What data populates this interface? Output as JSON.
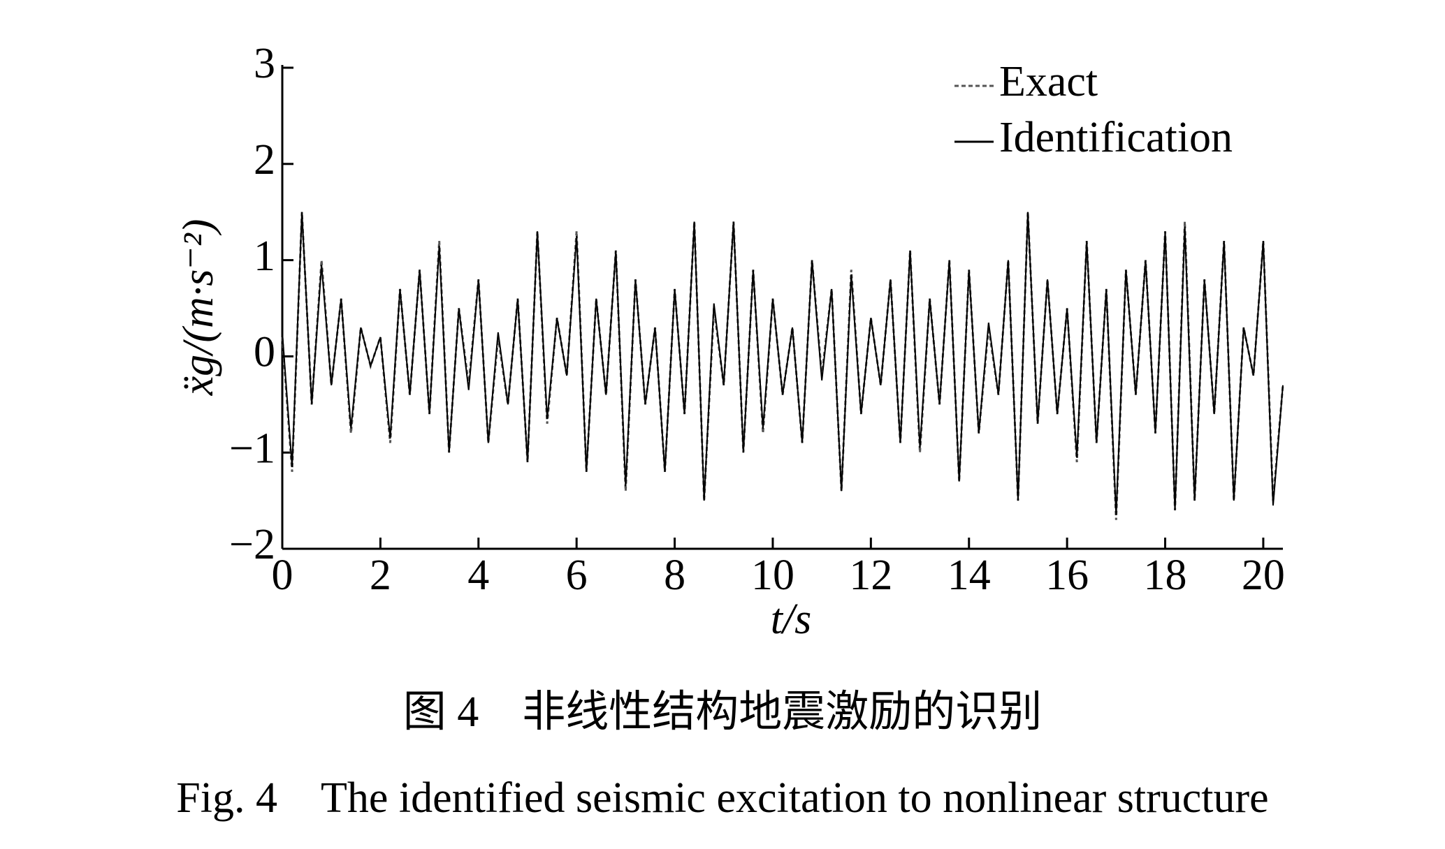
{
  "chart_data": {
    "type": "line",
    "xlabel": "t/s",
    "ylabel": "ẍg/(m·s⁻²)",
    "caption_cn": "图 4　非线性结构地震激励的识别",
    "caption_en": "Fig. 4　The identified seismic excitation to nonlinear structure",
    "x": [
      0,
      0.2,
      0.4,
      0.6,
      0.8,
      1.0,
      1.2,
      1.4,
      1.6,
      1.8,
      2.0,
      2.2,
      2.4,
      2.6,
      2.8,
      3.0,
      3.2,
      3.4,
      3.6,
      3.8,
      4.0,
      4.2,
      4.4,
      4.6,
      4.8,
      5.0,
      5.2,
      5.4,
      5.6,
      5.8,
      6.0,
      6.2,
      6.4,
      6.6,
      6.8,
      7.0,
      7.2,
      7.4,
      7.6,
      7.8,
      8.0,
      8.2,
      8.4,
      8.6,
      8.8,
      9.0,
      9.2,
      9.4,
      9.6,
      9.8,
      10.0,
      10.2,
      10.4,
      10.6,
      10.8,
      11.0,
      11.2,
      11.4,
      11.6,
      11.8,
      12.0,
      12.2,
      12.4,
      12.6,
      12.8,
      13.0,
      13.2,
      13.4,
      13.6,
      13.8,
      14.0,
      14.2,
      14.4,
      14.6,
      14.8,
      15.0,
      15.2,
      15.4,
      15.6,
      15.8,
      16.0,
      16.2,
      16.4,
      16.6,
      16.8,
      17.0,
      17.2,
      17.4,
      17.6,
      17.8,
      18.0,
      18.2,
      18.4,
      18.6,
      18.8,
      19.0,
      19.2,
      19.4,
      19.6,
      19.8,
      20.0,
      20.2,
      20.4
    ],
    "series": [
      {
        "name": "Exact",
        "color": "#555555",
        "dashed": true,
        "values": [
          0.2,
          -1.2,
          1.5,
          -0.5,
          1.0,
          -0.3,
          0.6,
          -0.8,
          0.3,
          -0.1,
          0.2,
          -0.9,
          0.7,
          -0.4,
          0.9,
          -0.6,
          1.2,
          -1.0,
          0.5,
          -0.3,
          0.8,
          -0.9,
          0.2,
          -0.5,
          0.6,
          -1.1,
          1.3,
          -0.7,
          0.4,
          -0.2,
          1.3,
          -1.2,
          0.6,
          -0.4,
          1.1,
          -1.4,
          0.8,
          -0.5,
          0.3,
          -1.2,
          0.7,
          -0.6,
          1.4,
          -1.5,
          0.5,
          -0.3,
          1.4,
          -1.0,
          0.9,
          -0.8,
          0.6,
          -0.4,
          0.3,
          -0.9,
          1.0,
          -0.2,
          0.7,
          -1.4,
          0.9,
          -0.6,
          0.4,
          -0.3,
          0.8,
          -0.9,
          1.1,
          -1.0,
          0.6,
          -0.5,
          1.0,
          -1.3,
          0.9,
          -0.8,
          0.3,
          -0.4,
          1.0,
          -1.5,
          1.5,
          -0.7,
          0.8,
          -0.6,
          0.5,
          -1.1,
          1.2,
          -0.9,
          0.7,
          -1.7,
          0.9,
          -0.4,
          1.0,
          -0.8,
          1.3,
          -1.6,
          1.4,
          -1.5,
          0.8,
          -0.6,
          1.2,
          -1.5,
          0.3,
          -0.2,
          1.2,
          -1.5,
          -0.3
        ]
      },
      {
        "name": "Identification",
        "color": "#000000",
        "dashed": false,
        "values": [
          0.25,
          -1.15,
          1.5,
          -0.5,
          0.95,
          -0.3,
          0.6,
          -0.75,
          0.3,
          -0.1,
          0.2,
          -0.85,
          0.7,
          -0.4,
          0.9,
          -0.6,
          1.15,
          -1.0,
          0.5,
          -0.35,
          0.8,
          -0.9,
          0.25,
          -0.5,
          0.6,
          -1.1,
          1.3,
          -0.65,
          0.4,
          -0.2,
          1.25,
          -1.2,
          0.6,
          -0.4,
          1.1,
          -1.35,
          0.8,
          -0.5,
          0.3,
          -1.2,
          0.7,
          -0.6,
          1.4,
          -1.5,
          0.55,
          -0.3,
          1.4,
          -1.0,
          0.9,
          -0.75,
          0.6,
          -0.4,
          0.3,
          -0.9,
          1.0,
          -0.25,
          0.7,
          -1.4,
          0.85,
          -0.6,
          0.4,
          -0.3,
          0.8,
          -0.9,
          1.1,
          -0.95,
          0.6,
          -0.5,
          1.0,
          -1.3,
          0.9,
          -0.8,
          0.35,
          -0.4,
          1.0,
          -1.5,
          1.5,
          -0.7,
          0.8,
          -0.6,
          0.5,
          -1.05,
          1.2,
          -0.9,
          0.7,
          -1.65,
          0.9,
          -0.4,
          1.0,
          -0.8,
          1.3,
          -1.6,
          1.35,
          -1.5,
          0.8,
          -0.6,
          1.2,
          -1.5,
          0.3,
          -0.2,
          1.2,
          -1.55,
          -0.3
        ]
      }
    ],
    "xlim": [
      0,
      20.4
    ],
    "xticks": [
      0,
      2,
      4,
      6,
      8,
      10,
      12,
      14,
      16,
      18,
      20
    ],
    "ylim": [
      -2,
      3
    ],
    "yticks": [
      {
        "value": -2,
        "label": "−2"
      },
      {
        "value": -1,
        "label": "−1"
      },
      0,
      1,
      2,
      3
    ],
    "legend": "upper right"
  }
}
